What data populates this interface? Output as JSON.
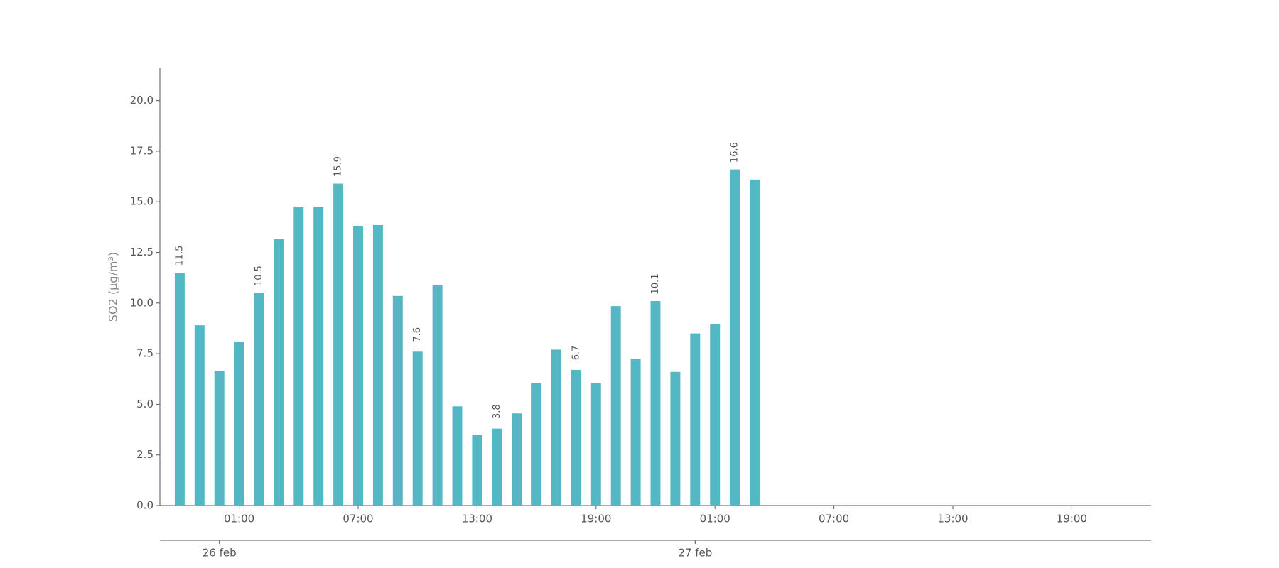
{
  "chart_data": {
    "type": "bar",
    "y_label": "SO2 (μg/m³)",
    "color": "#53b7c4",
    "x": [
      "22:00",
      "23:00",
      "00:00",
      "01:00",
      "02:00",
      "03:00",
      "04:00",
      "05:00",
      "06:00",
      "07:00",
      "08:00",
      "09:00",
      "10:00",
      "11:00",
      "12:00",
      "13:00",
      "14:00",
      "15:00",
      "16:00",
      "17:00",
      "18:00",
      "19:00",
      "20:00",
      "21:00",
      "22:00",
      "23:00",
      "00:00",
      "01:00",
      "02:00",
      "03:00"
    ],
    "values": [
      11.5,
      8.9,
      6.65,
      8.1,
      10.5,
      13.15,
      14.75,
      14.75,
      15.9,
      13.8,
      13.85,
      10.35,
      7.6,
      10.9,
      4.9,
      3.5,
      3.8,
      4.55,
      6.05,
      7.7,
      6.7,
      6.05,
      9.85,
      7.25,
      10.1,
      6.6,
      8.5,
      8.95,
      16.6,
      16.1
    ],
    "value_labels": [
      "11.5",
      null,
      null,
      null,
      "10.5",
      null,
      null,
      null,
      "15.9",
      null,
      null,
      null,
      "7.6",
      null,
      null,
      null,
      "3.8",
      null,
      null,
      null,
      "6.7",
      null,
      null,
      null,
      "10.1",
      null,
      null,
      null,
      "16.6",
      null
    ],
    "xlim": [
      -1,
      49
    ],
    "xticks": [
      {
        "value": 3,
        "label": "01:00"
      },
      {
        "value": 9,
        "label": "07:00"
      },
      {
        "value": 15,
        "label": "13:00"
      },
      {
        "value": 21,
        "label": "19:00"
      },
      {
        "value": 27,
        "label": "01:00"
      },
      {
        "value": 33,
        "label": "07:00"
      },
      {
        "value": 39,
        "label": "13:00"
      },
      {
        "value": 45,
        "label": "19:00"
      }
    ],
    "date_ticks": [
      {
        "value": 2,
        "label": "26 feb"
      },
      {
        "value": 26,
        "label": "27 feb"
      }
    ],
    "ylim": [
      0,
      21.6
    ],
    "yticks": [
      {
        "value": 0,
        "label": "0.0"
      },
      {
        "value": 2.5,
        "label": "2.5"
      },
      {
        "value": 5,
        "label": "5.0"
      },
      {
        "value": 7.5,
        "label": "7.5"
      },
      {
        "value": 10,
        "label": "10.0"
      },
      {
        "value": 12.5,
        "label": "12.5"
      },
      {
        "value": 15,
        "label": "15.0"
      },
      {
        "value": 17.5,
        "label": "17.5"
      },
      {
        "value": 20,
        "label": "20.0"
      }
    ]
  }
}
